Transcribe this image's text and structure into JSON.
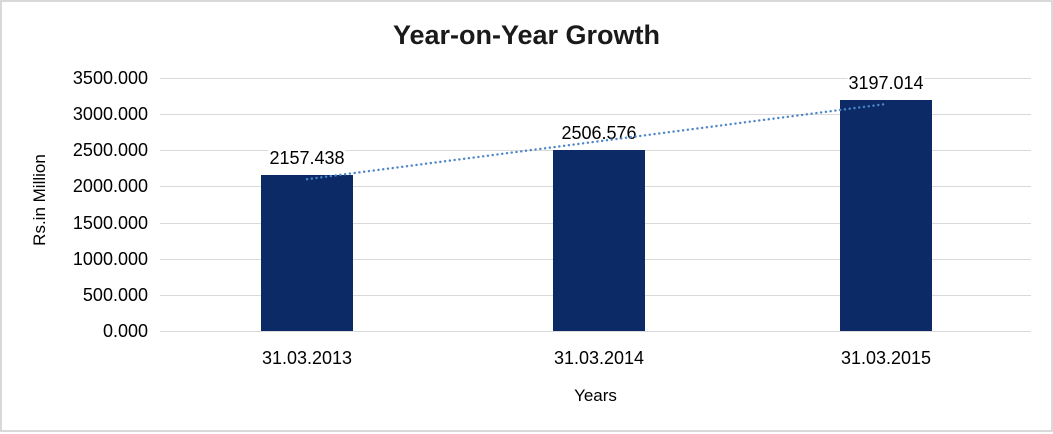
{
  "chart_data": {
    "type": "bar",
    "title": "Year-on-Year Growth",
    "xlabel": "Years",
    "ylabel": "Rs.in Million",
    "categories": [
      "31.03.2013",
      "31.03.2014",
      "31.03.2015"
    ],
    "values": [
      2157.438,
      2506.576,
      3197.014
    ],
    "data_labels": [
      "2157.438",
      "2506.576",
      "3197.014"
    ],
    "ylim": [
      0,
      3500
    ],
    "ytick_step": 500,
    "ytick_labels": [
      "0.000",
      "500.000",
      "1000.000",
      "1500.000",
      "2000.000",
      "2500.000",
      "3000.000",
      "3500.000"
    ],
    "grid": true,
    "legend": "none",
    "trendline": {
      "type": "linear",
      "style": "dotted"
    },
    "colors": {
      "bar": "#0b2a66",
      "trendline": "#4e86c8",
      "gridline": "#d9d9d9",
      "frame_border": "#d9d9d9",
      "text": "#000000",
      "background": "#ffffff"
    }
  }
}
